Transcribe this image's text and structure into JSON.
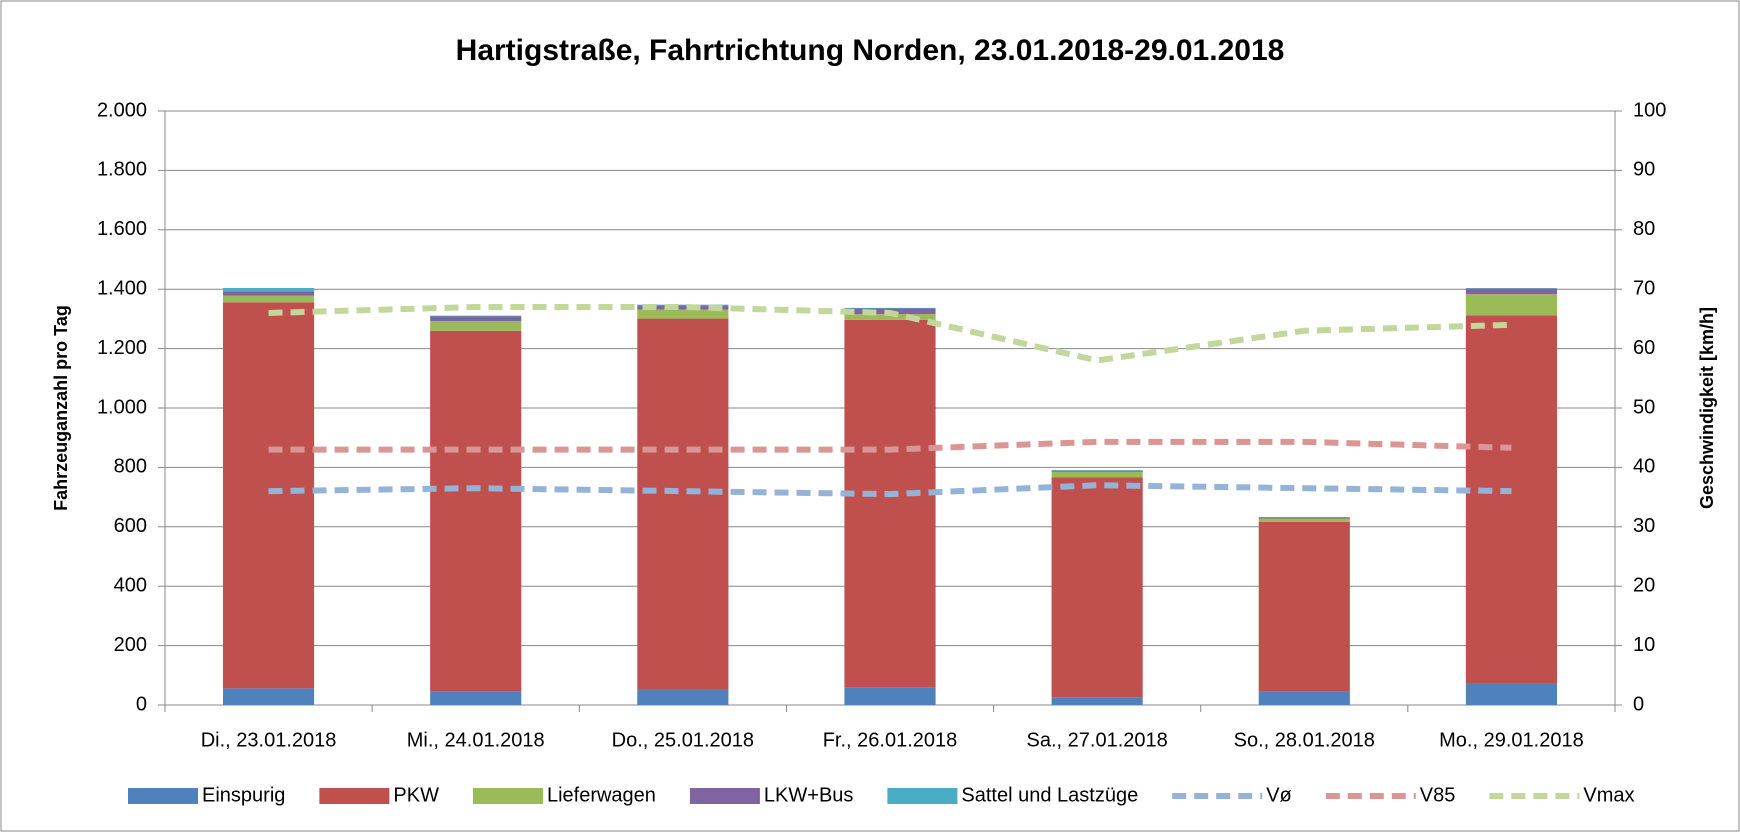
{
  "chart_data": {
    "type": "bar",
    "title": "Hartigstraße, Fahrtrichtung Norden, 23.01.2018-29.01.2018",
    "y_label": "Fahrzeuganzahl pro Tag",
    "y2_label": "Geschwindigkeit [km/h]",
    "stacked": true,
    "categories": [
      "Di., 23.01.2018",
      "Mi., 24.01.2018",
      "Do., 25.01.2018",
      "Fr., 26.01.2018",
      "Sa., 27.01.2018",
      "So., 28.01.2018",
      "Mo., 29.01.2018"
    ],
    "series": [
      {
        "name": "Einspurig",
        "color": "#4f81bd",
        "type": "bar",
        "values": [
          56,
          45,
          52,
          60,
          26,
          45,
          71
        ]
      },
      {
        "name": "PKW",
        "color": "#c0504d",
        "type": "bar",
        "values": [
          1300,
          1215,
          1249,
          1237,
          740,
          572,
          1241
        ]
      },
      {
        "name": "Lieferwagen",
        "color": "#9bbb59",
        "type": "bar",
        "values": [
          22,
          33,
          30,
          19,
          19,
          11,
          71
        ]
      },
      {
        "name": "LKW+Bus",
        "color": "#8064a2",
        "type": "bar",
        "values": [
          15,
          15,
          15,
          19,
          4,
          4,
          19
        ]
      },
      {
        "name": "Sattel und Lastzüge",
        "color": "#4bacc6",
        "type": "bar",
        "values": [
          11,
          3,
          2,
          2,
          2,
          1,
          2
        ]
      },
      {
        "name": "Vø",
        "color": "#95b3d7",
        "type": "line",
        "axis": "y2",
        "values": [
          36,
          36.5,
          36,
          35.5,
          37,
          36.5,
          36
        ]
      },
      {
        "name": "V85",
        "color": "#d99694",
        "type": "line",
        "axis": "y2",
        "values": [
          43,
          43,
          43,
          43,
          44.3,
          44.3,
          43.3
        ]
      },
      {
        "name": "Vmax",
        "color": "#c3d69b",
        "type": "line",
        "axis": "y2",
        "values": [
          66,
          67,
          67,
          66,
          58,
          63,
          64
        ]
      }
    ],
    "ylim": [
      0,
      2000
    ],
    "yticks": [
      0,
      200,
      400,
      600,
      800,
      {
        "value": 1000,
        "label": "1.000"
      },
      {
        "value": 1200,
        "label": "1.200"
      },
      {
        "value": 1400,
        "label": "1.400"
      },
      {
        "value": 1600,
        "label": "1.600"
      },
      {
        "value": 1800,
        "label": "1.800"
      },
      {
        "value": 2000,
        "label": "2.000"
      }
    ],
    "y2lim": [
      0,
      100
    ],
    "y2ticks": [
      0,
      10,
      20,
      30,
      40,
      50,
      60,
      70,
      80,
      90,
      100
    ],
    "grid": true,
    "legend": "bottom"
  }
}
